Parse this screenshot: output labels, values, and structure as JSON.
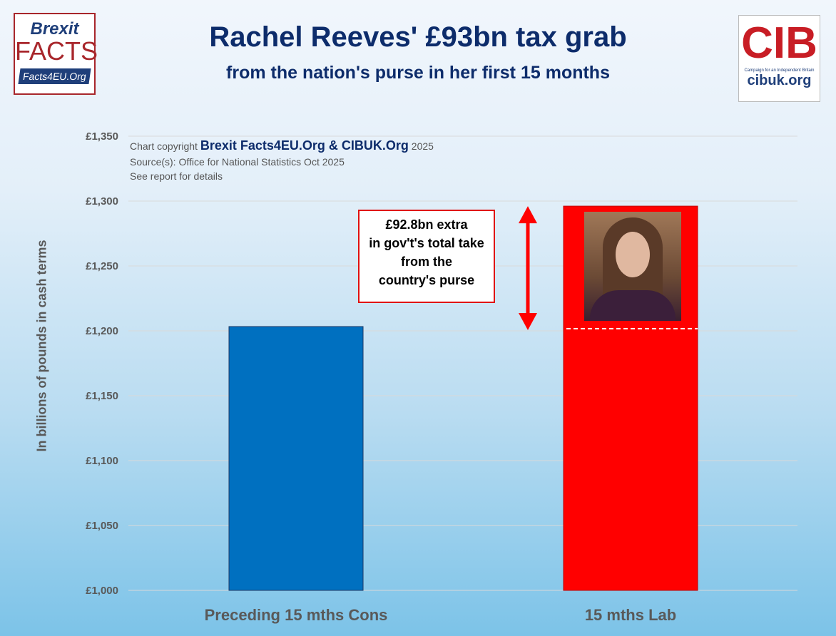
{
  "header": {
    "title": "Rachel Reeves' £93bn tax grab",
    "subtitle": "from the nation's purse in her first 15 months"
  },
  "logos": {
    "left": {
      "line1": "Brexit",
      "line2": "FACTS",
      "line3": "Facts4EU.Org"
    },
    "right": {
      "mark": "CIB",
      "tagline": "Campaign for an Independent Britain",
      "url": "cibuk.org"
    }
  },
  "credits": {
    "prefix": "Chart copyright",
    "owners": "Brexit Facts4EU.Org & CIBUK.Org",
    "year": "2025",
    "source": "Source(s): Office for National Statistics Oct 2025",
    "details": "See report for details"
  },
  "annotation": {
    "lines": [
      "£92.8bn extra",
      "in gov't's total take",
      "from the",
      "country's purse"
    ]
  },
  "colors": {
    "cons": "#0070c0",
    "lab": "#ff0000",
    "arrow": "#ff0000"
  },
  "chart_data": {
    "type": "bar",
    "title": "Rachel Reeves' £93bn tax grab",
    "xlabel": "",
    "ylabel": "In billions of pounds in cash terms",
    "categories": [
      "Preceding 15 mths Cons",
      "15 mths Lab"
    ],
    "values": [
      1203.3,
      1296.1
    ],
    "ylim": [
      1000,
      1350
    ],
    "yticks": [
      1000,
      1050,
      1100,
      1150,
      1200,
      1250,
      1300,
      1350
    ],
    "ytick_labels": [
      "£1,000",
      "£1,050",
      "£1,100",
      "£1,150",
      "£1,200",
      "£1,250",
      "£1,300",
      "£1,350"
    ],
    "grid": true
  }
}
